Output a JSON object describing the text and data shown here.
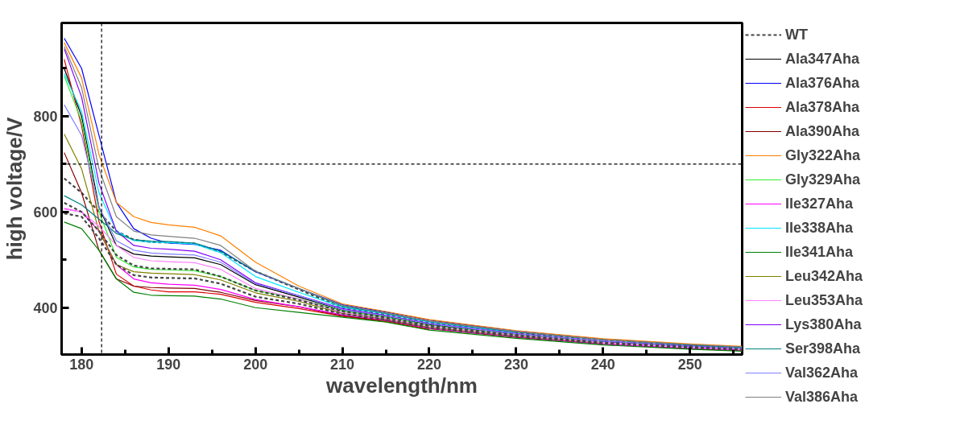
{
  "chart_data": {
    "type": "line",
    "xlabel": "wavelength/nm",
    "ylabel": "high voltage/V",
    "x": [
      178,
      180,
      182,
      184,
      186,
      188,
      190,
      193,
      196,
      200,
      205,
      210,
      215,
      220,
      230,
      240,
      250,
      256
    ],
    "xlim": [
      177.7,
      256
    ],
    "ylim": [
      302,
      995
    ],
    "xticks": [
      180,
      {
        "value": 185,
        "label": null
      },
      190,
      {
        "value": 195,
        "label": null
      },
      200,
      {
        "value": 205,
        "label": null
      },
      210,
      {
        "value": 215,
        "label": null
      },
      220,
      {
        "value": 225,
        "label": null
      },
      230,
      {
        "value": 235,
        "label": null
      },
      240,
      {
        "value": 245,
        "label": null
      },
      250,
      {
        "value": 255,
        "label": null
      }
    ],
    "yticks": [
      400,
      {
        "value": 500,
        "label": null
      },
      600,
      {
        "value": 700,
        "label": null
      },
      800,
      {
        "value": 900,
        "label": null
      }
    ],
    "grid": false,
    "legend": "right",
    "marker": "none",
    "ref_lines": [
      {
        "axis": "x",
        "value": 182.3,
        "line_style": "dashed",
        "color": "#000000"
      },
      {
        "axis": "y",
        "value": 700,
        "line_style": "dashed",
        "color": "#000000"
      }
    ],
    "series": [
      {
        "name": "WT",
        "color": "#444444",
        "line_style": "dashed",
        "values": [
          670,
          640,
          600,
          560,
          542,
          537,
          536,
          534,
          516,
          476,
          438,
          400,
          386,
          369,
          347,
          331,
          321,
          316
        ]
      },
      {
        "name": "Ala347Aha",
        "color": "#000000",
        "values": [
          900,
          800,
          610,
          530,
          512,
          508,
          506,
          504,
          490,
          448,
          422,
          395,
          382,
          365,
          344,
          329,
          319,
          314
        ]
      },
      {
        "name": "Ala376Aha",
        "color": "#0000ff",
        "values": [
          963,
          900,
          760,
          620,
          565,
          545,
          535,
          532,
          520,
          475,
          440,
          406,
          391,
          374,
          351,
          334,
          323,
          318
        ]
      },
      {
        "name": "Ala378Aha",
        "color": "#dd0000",
        "values": [
          919,
          780,
          580,
          470,
          445,
          437,
          433,
          433,
          428,
          411,
          398,
          382,
          371,
          354,
          null,
          null,
          null,
          null
        ]
      },
      {
        "name": "Ala390Aha",
        "color": "#800000",
        "values": [
          724,
          640,
          520,
          460,
          445,
          442,
          441,
          440,
          432,
          415,
          402,
          383,
          373,
          356,
          338,
          324,
          314,
          310
        ]
      },
      {
        "name": "Gly322Aha",
        "color": "#ff8000",
        "values": [
          954,
          880,
          720,
          620,
          590,
          578,
          573,
          568,
          550,
          495,
          445,
          408,
          392,
          375,
          352,
          335,
          324,
          319
        ]
      },
      {
        "name": "Gly329Aha",
        "color": "#33ee33",
        "values": [
          884,
          790,
          600,
          505,
          485,
          480,
          479,
          477,
          465,
          436,
          418,
          393,
          380,
          363,
          344,
          328,
          null,
          null
        ]
      },
      {
        "name": "Ile327Aha",
        "color": "#ff00ff",
        "values": [
          607,
          600,
          560,
          490,
          460,
          452,
          449,
          447,
          438,
          417,
          402,
          385,
          374,
          357,
          339,
          324,
          315,
          311
        ]
      },
      {
        "name": "Ile338Aha",
        "color": "#00e5ff",
        "values": [
          889,
          810,
          640,
          560,
          540,
          537,
          536,
          533,
          515,
          465,
          432,
          401,
          387,
          370,
          348,
          null,
          null,
          null
        ]
      },
      {
        "name": "Ile341Aha",
        "color": "#008000",
        "values": [
          579,
          565,
          520,
          460,
          432,
          426,
          425,
          424,
          418,
          400,
          390,
          380,
          370,
          353,
          336,
          322,
          313,
          309
        ]
      },
      {
        "name": "Leu342Aha",
        "color": "#808000",
        "values": [
          763,
          690,
          560,
          490,
          475,
          472,
          471,
          469,
          458,
          431,
          413,
          388,
          376,
          359,
          341,
          326,
          null,
          null
        ]
      },
      {
        "name": "Leu353Aha",
        "color": "#ff80ff",
        "values": [
          606,
          600,
          570,
          530,
          505,
          498,
          496,
          494,
          480,
          440,
          418,
          390,
          378,
          361,
          342,
          327,
          317,
          313
        ]
      },
      {
        "name": "Lys380Aha",
        "color": "#8000ff",
        "values": [
          941,
          840,
          660,
          560,
          530,
          524,
          522,
          518,
          500,
          452,
          425,
          398,
          384,
          367,
          346,
          330,
          320,
          315
        ]
      },
      {
        "name": "Ser398Aha",
        "color": "#008080",
        "values": [
          634,
          615,
          585,
          555,
          542,
          539,
          538,
          535,
          518,
          476,
          440,
          403,
          388,
          371,
          349,
          333,
          322,
          317
        ]
      },
      {
        "name": "Val362Aha",
        "color": "#8080ff",
        "values": [
          824,
          760,
          610,
          540,
          520,
          514,
          512,
          510,
          495,
          450,
          425,
          396,
          383,
          366,
          345,
          330,
          319,
          315
        ]
      },
      {
        "name": "Val386Aha",
        "color": "#808080",
        "values": [
          946,
          860,
          690,
          590,
          560,
          552,
          549,
          545,
          530,
          476,
          440,
          405,
          389,
          372,
          350,
          333,
          323,
          318
        ]
      },
      {
        "color": "#444444",
        "line_style": "dashed",
        "values": [
          619,
          600,
          560,
          510,
          488,
          482,
          481,
          480,
          465,
          436,
          416,
          392,
          379,
          362,
          343,
          327,
          318,
          313
        ]
      },
      {
        "color": "#444444",
        "line_style": "dashed",
        "values": [
          597,
          590,
          545,
          490,
          468,
          463,
          462,
          461,
          450,
          423,
          408,
          387,
          375,
          358,
          340,
          325,
          316,
          312
        ]
      }
    ]
  }
}
